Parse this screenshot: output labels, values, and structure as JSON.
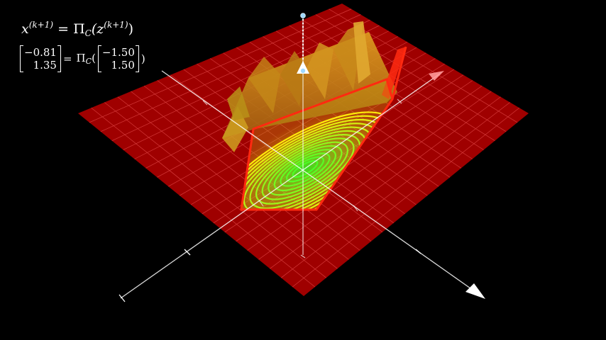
{
  "equation": {
    "x": "x",
    "x_sup": "(k+1)",
    "eq": "=",
    "pi": "Π",
    "pi_sub": "C",
    "z_open": "(z",
    "z_sup": "(k+1)",
    "z_close": ")"
  },
  "numeric": {
    "x_vec": [
      "−0.81",
      "1.35"
    ],
    "z_vec": [
      "−1.50",
      "1.50"
    ],
    "eq": "=",
    "pi": "Π",
    "pi_sub": "C",
    "open": "(",
    "close": ")"
  },
  "colors": {
    "plane": "#b00000",
    "plane_grid": "#ff5a5a",
    "constraint_edge": "#ff2a10",
    "axis": "#ffffff",
    "contour_outer": "#ffee22",
    "contour_inner": "#44ff22",
    "wall": "#d08a10",
    "point_marker": "#9fd8ff"
  },
  "icons": [
    "projection-point-marker",
    "axis-arrowhead"
  ]
}
